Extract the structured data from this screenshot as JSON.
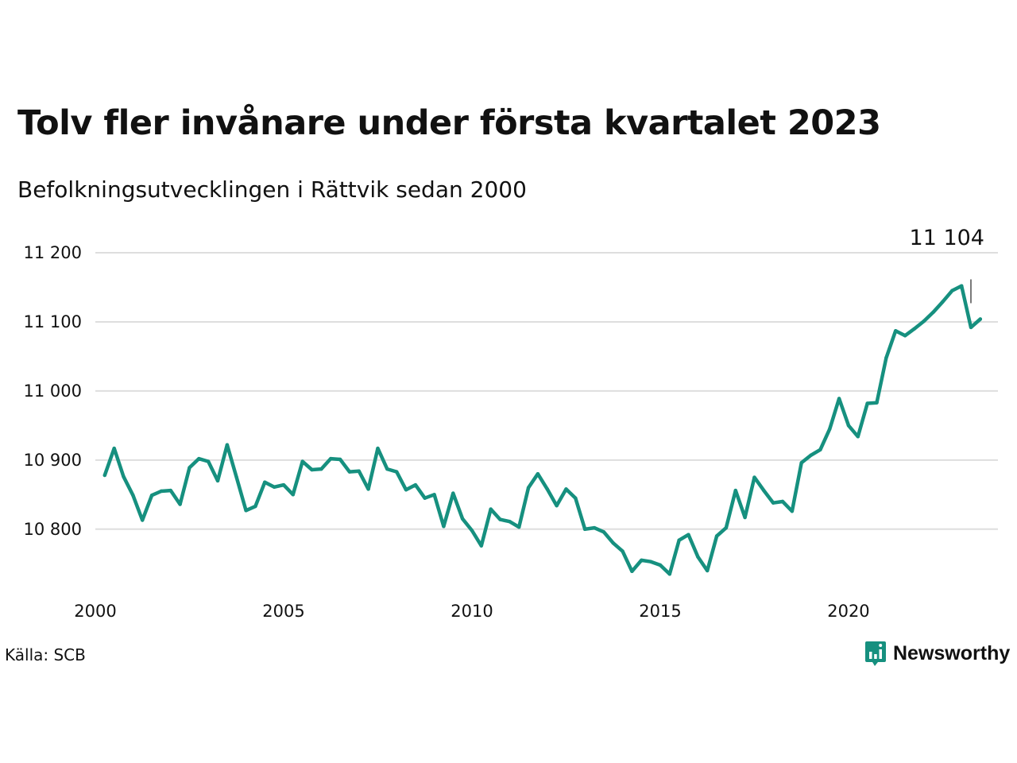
{
  "title": "Tolv fler invånare under första kvartalet 2023",
  "subtitle": "Befolkningsutvecklingen i Rättvik sedan 2000",
  "source": "Källa: SCB",
  "brand": "Newsworthy",
  "colors": {
    "line": "#16907f",
    "grid": "#dedede",
    "text": "#111111",
    "brand": "#16907f"
  },
  "chart_data": {
    "type": "line",
    "title": "Tolv fler invånare under första kvartalet 2023",
    "subtitle": "Befolkningsutvecklingen i Rättvik sedan 2000",
    "xlabel": "",
    "ylabel": "",
    "grid": true,
    "x_ticks": [
      2000,
      2005,
      2010,
      2015,
      2020
    ],
    "x_tick_labels": [
      "2000",
      "2005",
      "2010",
      "2015",
      "2020"
    ],
    "y_ticks": [
      10800,
      10900,
      11000,
      11100,
      11200
    ],
    "y_tick_labels": [
      "10 800",
      "10 900",
      "11 000",
      "11 100",
      "11 200"
    ],
    "xlim": [
      2000,
      2023.25
    ],
    "ylim": [
      10725,
      11200
    ],
    "annotation": {
      "label": "11 104",
      "x": 2023.25,
      "y": 11104
    },
    "series": [
      {
        "x_start": 2000.25,
        "x_step": 0.25,
        "values": [
          10878,
          10917,
          10876,
          10849,
          10813,
          10849,
          10855,
          10856,
          10836,
          10889,
          10902,
          10898,
          10870,
          10922,
          10875,
          10827,
          10833,
          10868,
          10861,
          10864,
          10850,
          10898,
          10886,
          10887,
          10902,
          10901,
          10883,
          10884,
          10858,
          10917,
          10887,
          10883,
          10857,
          10864,
          10845,
          10850,
          10804,
          10852,
          10815,
          10798,
          10776,
          10829,
          10814,
          10811,
          10803,
          10860,
          10880,
          10858,
          10834,
          10858,
          10845,
          10800,
          10802,
          10796,
          10780,
          10768,
          10739,
          10755,
          10753,
          10748,
          10735,
          10784,
          10792,
          10760,
          10740,
          10790,
          10802,
          10856,
          10817,
          10875,
          10856,
          10838,
          10840,
          10826,
          10896,
          10907,
          10915,
          10945,
          10989,
          10950,
          10934,
          10982,
          10983,
          11048,
          11087,
          11080,
          11090,
          11101,
          11114,
          11129,
          11145,
          11152,
          11092,
          11104
        ]
      }
    ]
  }
}
